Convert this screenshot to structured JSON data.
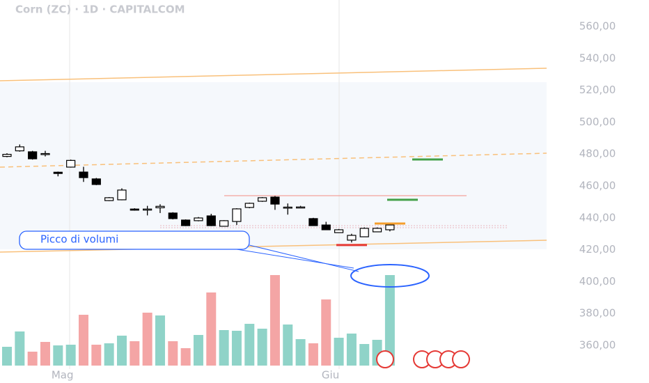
{
  "chart_data": {
    "type": "candlestick",
    "title": "Corn (ZC) · 1D · CAPITALCOM",
    "annotation": "Picco di volumi",
    "categories": [
      null,
      null,
      null,
      null,
      null,
      "Mag",
      null,
      null,
      null,
      null,
      null,
      null,
      null,
      null,
      null,
      null,
      null,
      null,
      null,
      null,
      null,
      null,
      null,
      null,
      null,
      null,
      "Giu",
      null,
      null,
      null,
      null
    ],
    "open": [
      478.5,
      482,
      481.4,
      480,
      468.6,
      471.8,
      468.7,
      464.4,
      450.8,
      451.3,
      445.5,
      445.2,
      446.3,
      443,
      438.6,
      438.2,
      441.2,
      434.7,
      437.7,
      446.5,
      450.4,
      453,
      446.3,
      446.5,
      439.5,
      435.5,
      430.7,
      426,
      428.1,
      431.2,
      432.5
    ],
    "high": [
      480.5,
      486,
      482,
      482,
      469,
      476.5,
      472,
      465,
      453,
      458.5,
      446,
      447.5,
      448.5,
      443.5,
      439,
      440.5,
      442.5,
      438.5,
      446,
      449.5,
      453,
      454,
      449,
      447.5,
      440,
      437.5,
      433,
      430,
      434,
      434,
      437
    ],
    "low": [
      478,
      481.5,
      476.5,
      478.5,
      466,
      471.5,
      462.5,
      460.5,
      450.5,
      451,
      444.5,
      441.5,
      443,
      439,
      434.8,
      437.8,
      434.8,
      434.5,
      435.5,
      446,
      450,
      445,
      442,
      446.3,
      435,
      432.3,
      430.5,
      424.5,
      428,
      431,
      431.5
    ],
    "close": [
      479.8,
      484.5,
      477,
      480.3,
      467.8,
      476,
      465.2,
      460.9,
      452.6,
      457.4,
      444.8,
      445.5,
      447.2,
      439.5,
      435.1,
      439.9,
      435.1,
      438.2,
      445.6,
      449.1,
      452.6,
      448.6,
      446.7,
      446.8,
      435.1,
      432.5,
      432.5,
      429,
      433.4,
      433.4,
      435.5
    ],
    "volume": [
      27,
      49,
      20,
      34,
      29,
      30,
      73,
      30,
      32,
      43,
      35,
      76,
      72,
      35,
      25,
      44,
      105,
      51,
      50,
      60,
      53,
      130,
      59,
      38,
      32,
      95,
      40,
      46,
      31,
      37,
      130
    ],
    "volume_colors": [
      "#8fd3c8",
      "#8fd3c8",
      "#f4a5a5",
      "#f4a5a5",
      "#8fd3c8",
      "#8fd3c8",
      "#f4a5a5",
      "#f4a5a5",
      "#8fd3c8",
      "#8fd3c8",
      "#f4a5a5",
      "#f4a5a5",
      "#8fd3c8",
      "#f4a5a5",
      "#f4a5a5",
      "#8fd3c8",
      "#f4a5a5",
      "#8fd3c8",
      "#8fd3c8",
      "#8fd3c8",
      "#8fd3c8",
      "#f4a5a5",
      "#8fd3c8",
      "#8fd3c8",
      "#f4a5a5",
      "#f4a5a5",
      "#8fd3c8",
      "#8fd3c8",
      "#8fd3c8",
      "#8fd3c8",
      "#8fd3c8"
    ],
    "volume_lim": [
      0,
      150
    ],
    "levels": [
      {
        "value": 453.9,
        "color": "#f28b82"
      },
      {
        "value": 476.6,
        "color": "#43a047"
      },
      {
        "value": 451.3,
        "color": "#43a047"
      },
      {
        "value": 436.4,
        "color": "#f59e2c"
      },
      {
        "value": 422.9,
        "color": "#e53935"
      }
    ],
    "ylim": [
      336.4,
      576.6
    ],
    "yticks": [
      {
        "value": 360,
        "label": "360,00"
      },
      {
        "value": 380,
        "label": "380,00"
      },
      {
        "value": 400,
        "label": "400,00"
      },
      {
        "value": 420,
        "label": "420,00"
      },
      {
        "value": 440,
        "label": "440,00"
      },
      {
        "value": 460,
        "label": "460,00"
      },
      {
        "value": 480,
        "label": "480,00"
      },
      {
        "value": 500,
        "label": "500,00"
      },
      {
        "value": 520,
        "label": "520,00"
      },
      {
        "value": 540,
        "label": "540,00"
      },
      {
        "value": 560,
        "label": "560,00"
      }
    ]
  }
}
